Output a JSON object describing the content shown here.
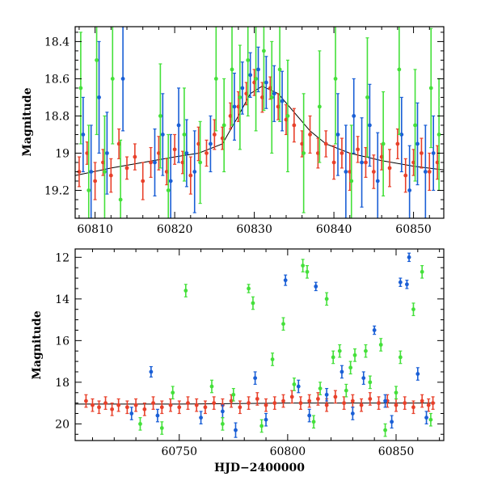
{
  "chart_data": [
    {
      "type": "scatter",
      "title": "",
      "xlabel": "",
      "ylabel": "Magnitude",
      "xlim": [
        60807.5,
        60853.8
      ],
      "ylim": [
        19.35,
        18.32
      ],
      "y_inverted": true,
      "x_ticks": [
        60810,
        60820,
        60830,
        60840,
        60850
      ],
      "y_ticks": [
        18.4,
        18.6,
        18.8,
        19,
        19.2
      ],
      "grid": false,
      "legend": "none",
      "model_curve": {
        "color": "#000000",
        "x": [
          60807.5,
          60812,
          60816,
          60820,
          60823,
          60826,
          60828,
          60829.5,
          60831,
          60833,
          60835,
          60837,
          60839,
          60842,
          60846,
          60850,
          60853.8
        ],
        "y": [
          19.12,
          19.08,
          19.05,
          19.02,
          19.0,
          18.95,
          18.8,
          18.68,
          18.64,
          18.68,
          18.78,
          18.88,
          18.95,
          19.0,
          19.04,
          19.07,
          19.09
        ]
      },
      "series": [
        {
          "color": "#e8402a",
          "x": [
            60808,
            60809,
            60810,
            60811,
            60812,
            60813,
            60814,
            60815,
            60816,
            60817,
            60818,
            60819,
            60820,
            60821,
            60822,
            60823,
            60824,
            60825,
            60826,
            60827,
            60828,
            60829,
            60830,
            60831,
            60832,
            60833,
            60834,
            60835,
            60836,
            60837,
            60838,
            60839,
            60840,
            60841,
            60842,
            60843,
            60844,
            60845,
            60846,
            60847,
            60848,
            60849,
            60850,
            60851,
            60852,
            60853
          ],
          "y": [
            19.1,
            19.0,
            19.15,
            19.05,
            19.12,
            18.95,
            19.08,
            19.02,
            19.15,
            19.05,
            19.0,
            19.1,
            18.98,
            19.05,
            19.12,
            18.95,
            19.0,
            18.9,
            18.92,
            18.8,
            18.75,
            18.68,
            18.62,
            18.7,
            18.65,
            18.75,
            18.82,
            18.85,
            18.95,
            18.9,
            19.0,
            18.95,
            19.05,
            19.0,
            19.1,
            18.98,
            19.05,
            19.1,
            19.02,
            19.08,
            18.95,
            19.12,
            19.05,
            19.0,
            19.1,
            19.05
          ],
          "err": [
            0.08,
            0.06,
            0.1,
            0.07,
            0.09,
            0.08,
            0.06,
            0.07,
            0.1,
            0.08,
            0.09,
            0.07,
            0.08,
            0.06,
            0.1,
            0.09,
            0.07,
            0.08,
            0.06,
            0.07,
            0.08,
            0.06,
            0.07,
            0.08,
            0.06,
            0.07,
            0.08,
            0.09,
            0.07,
            0.1,
            0.08,
            0.07,
            0.09,
            0.08,
            0.1,
            0.07,
            0.08,
            0.09,
            0.07,
            0.1,
            0.08,
            0.09,
            0.07,
            0.08,
            0.1,
            0.09
          ]
        },
        {
          "color": "#1a5fd6",
          "x": [
            60808.5,
            60809.5,
            60810.5,
            60811.5,
            60813.5,
            60817.5,
            60818.5,
            60819.5,
            60820.5,
            60821.5,
            60822.5,
            60824.5,
            60827.5,
            60828.5,
            60829.5,
            60830.5,
            60831.5,
            60832.5,
            60833.5,
            60840.5,
            60841.5,
            60842.5,
            60843.5,
            60844.5,
            60845.5,
            60848.5,
            60849.5,
            60850.5,
            60851.5,
            60852.5
          ],
          "y": [
            18.9,
            19.1,
            18.7,
            19.0,
            18.6,
            19.05,
            18.9,
            19.15,
            18.85,
            19.0,
            19.1,
            18.95,
            18.75,
            18.65,
            18.58,
            18.55,
            18.62,
            18.68,
            18.72,
            18.9,
            19.1,
            18.8,
            19.05,
            18.85,
            19.15,
            18.9,
            19.2,
            18.95,
            19.1,
            19.0
          ],
          "err": [
            0.2,
            0.25,
            0.3,
            0.22,
            0.28,
            0.18,
            0.22,
            0.25,
            0.2,
            0.18,
            0.22,
            0.15,
            0.18,
            0.14,
            0.12,
            0.12,
            0.14,
            0.15,
            0.16,
            0.22,
            0.25,
            0.2,
            0.24,
            0.22,
            0.26,
            0.2,
            0.24,
            0.22,
            0.25,
            0.2
          ]
        },
        {
          "color": "#44e03a",
          "x": [
            60808.2,
            60809.2,
            60810.2,
            60811.2,
            60812.2,
            60813.2,
            60818.2,
            60819.2,
            60821.2,
            60823.2,
            60825.2,
            60826.2,
            60827.2,
            60828.2,
            60829.2,
            60830.2,
            60831.2,
            60832.2,
            60833.2,
            60834.2,
            60836.2,
            60838.2,
            60840.2,
            60842.2,
            60844.2,
            60846.2,
            60848.2,
            60850.2,
            60852.2,
            60853.2
          ],
          "y": [
            18.65,
            19.2,
            18.5,
            19.1,
            18.6,
            19.25,
            18.8,
            19.2,
            18.9,
            19.05,
            18.6,
            18.85,
            18.55,
            18.7,
            18.5,
            18.6,
            18.45,
            18.7,
            18.55,
            18.8,
            19.0,
            18.75,
            18.6,
            19.15,
            18.7,
            18.95,
            18.55,
            18.85,
            18.65,
            18.9
          ],
          "err": [
            0.3,
            0.35,
            0.4,
            0.3,
            0.35,
            0.32,
            0.28,
            0.3,
            0.25,
            0.22,
            0.28,
            0.25,
            0.3,
            0.28,
            0.3,
            0.28,
            0.32,
            0.3,
            0.28,
            0.3,
            0.32,
            0.3,
            0.35,
            0.3,
            0.32,
            0.28,
            0.35,
            0.3,
            0.32,
            0.3
          ]
        }
      ]
    },
    {
      "type": "scatter",
      "title": "",
      "xlabel": "HJD−2400000",
      "ylabel": "Magnitude",
      "xlim": [
        60702,
        60872
      ],
      "ylim": [
        20.8,
        11.6
      ],
      "y_inverted": true,
      "x_ticks": [
        60750,
        60800,
        60850
      ],
      "y_ticks": [
        12,
        14,
        16,
        18,
        20
      ],
      "grid": false,
      "legend": "none",
      "model_curve": {
        "color": "#000000",
        "x": [
          60702,
          60750,
          60800,
          60850,
          60868
        ],
        "y": [
          19.05,
          19.05,
          19.0,
          19.0,
          19.0
        ]
      },
      "series": [
        {
          "color": "#e8402a",
          "x": [
            60707,
            60710,
            60713,
            60716,
            60719,
            60722,
            60726,
            60730,
            60734,
            60738,
            60742,
            60746,
            60750,
            60754,
            60758,
            60762,
            60766,
            60770,
            60774,
            60778,
            60782,
            60786,
            60790,
            60794,
            60798,
            60802,
            60806,
            60810,
            60814,
            60818,
            60822,
            60826,
            60830,
            60834,
            60838,
            60842,
            60846,
            60850,
            60854,
            60858,
            60862,
            60865,
            60867
          ],
          "y": [
            18.9,
            19.1,
            19.2,
            19.0,
            19.3,
            19.1,
            19.2,
            19.1,
            19.3,
            19.0,
            19.2,
            19.1,
            19.2,
            19.0,
            19.1,
            19.2,
            19.0,
            19.1,
            18.9,
            19.2,
            19.0,
            18.8,
            19.1,
            19.0,
            18.9,
            18.7,
            19.0,
            18.9,
            18.8,
            19.1,
            18.7,
            19.0,
            18.9,
            19.1,
            18.8,
            19.0,
            18.9,
            19.1,
            19.0,
            19.2,
            18.9,
            19.1,
            19.0
          ],
          "err": [
            0.3,
            0.3,
            0.3,
            0.3,
            0.3,
            0.3,
            0.3,
            0.3,
            0.3,
            0.3,
            0.3,
            0.3,
            0.3,
            0.3,
            0.3,
            0.3,
            0.3,
            0.3,
            0.3,
            0.3,
            0.3,
            0.3,
            0.3,
            0.3,
            0.3,
            0.3,
            0.3,
            0.3,
            0.3,
            0.3,
            0.3,
            0.3,
            0.3,
            0.3,
            0.3,
            0.3,
            0.3,
            0.3,
            0.3,
            0.3,
            0.3,
            0.3,
            0.3
          ]
        },
        {
          "color": "#1a5fd6",
          "x": [
            60737,
            60776,
            60785,
            60799,
            60805,
            60813,
            60818,
            60825,
            60835,
            60840,
            60845,
            60852,
            60855,
            60856,
            60860,
            60728,
            60740,
            60760,
            60770,
            60790,
            60810,
            60830,
            60848,
            60864
          ],
          "y": [
            17.5,
            20.3,
            17.8,
            13.1,
            18.2,
            13.4,
            18.6,
            17.5,
            17.8,
            15.5,
            18.9,
            13.2,
            13.3,
            12.0,
            17.6,
            19.5,
            19.6,
            19.7,
            19.4,
            19.8,
            19.6,
            19.5,
            19.9,
            19.7
          ],
          "err": [
            0.25,
            0.35,
            0.3,
            0.25,
            0.3,
            0.2,
            0.3,
            0.3,
            0.3,
            0.2,
            0.3,
            0.2,
            0.2,
            0.2,
            0.3,
            0.3,
            0.3,
            0.3,
            0.3,
            0.3,
            0.3,
            0.3,
            0.3,
            0.3
          ]
        },
        {
          "color": "#44e03a",
          "x": [
            60753,
            60782,
            60784,
            60793,
            60798,
            60807,
            60809,
            60818,
            60821,
            60824,
            60829,
            60831,
            60836,
            60843,
            60852,
            60858,
            60862,
            60747,
            60765,
            60775,
            60803,
            60815,
            60827,
            60838,
            60850,
            60732,
            60742,
            60770,
            60788,
            60812,
            60845,
            60866
          ],
          "y": [
            13.6,
            13.5,
            14.2,
            16.9,
            15.2,
            12.4,
            12.7,
            14.0,
            16.8,
            16.5,
            17.3,
            16.7,
            16.5,
            16.2,
            16.8,
            14.5,
            12.7,
            18.5,
            18.2,
            18.6,
            18.1,
            18.3,
            18.4,
            18.0,
            18.5,
            20.0,
            20.2,
            20.0,
            20.1,
            19.9,
            20.3,
            19.8
          ],
          "err": [
            0.3,
            0.2,
            0.3,
            0.3,
            0.3,
            0.3,
            0.3,
            0.3,
            0.3,
            0.3,
            0.3,
            0.3,
            0.3,
            0.3,
            0.3,
            0.3,
            0.3,
            0.3,
            0.3,
            0.3,
            0.3,
            0.3,
            0.3,
            0.3,
            0.3,
            0.3,
            0.3,
            0.3,
            0.3,
            0.3,
            0.3,
            0.3
          ]
        }
      ]
    }
  ]
}
